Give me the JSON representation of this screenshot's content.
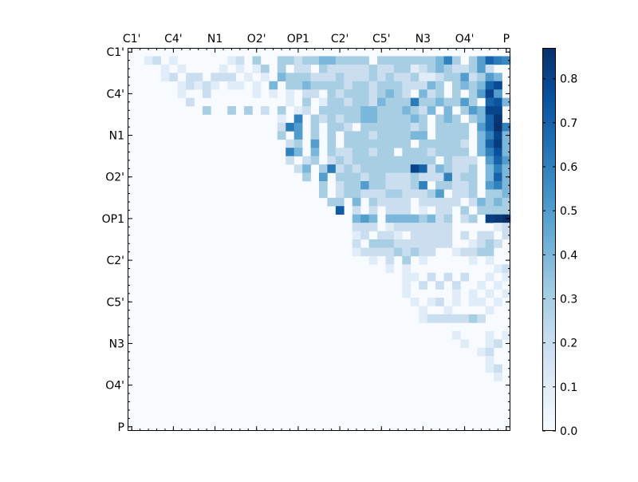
{
  "chart_data": {
    "type": "heatmap",
    "title": "",
    "xlabel": "",
    "ylabel": "",
    "colormap": "Blues",
    "colormap_stops": [
      "#f7fbff",
      "#deebf7",
      "#c6dbef",
      "#9ecae1",
      "#6baed6",
      "#4292c6",
      "#2171b5",
      "#08519c",
      "#08306b"
    ],
    "vmin": 0.0,
    "vmax": 0.87,
    "matrix_size": 46,
    "tick_labels": [
      "C1'",
      "C4'",
      "N1",
      "O2'",
      "OP1",
      "C2'",
      "C5'",
      "N3",
      "O4'",
      "P"
    ],
    "tick_label_indices": [
      0,
      5,
      10,
      15,
      20,
      25,
      30,
      35,
      40,
      45
    ],
    "x_tick_position": "top",
    "colorbar_ticks": [
      "0.0",
      "0.1",
      "0.2",
      "0.3",
      "0.4",
      "0.5",
      "0.6",
      "0.7",
      "0.8"
    ],
    "colorbar_tick_values": [
      0.0,
      0.1,
      0.2,
      0.3,
      0.4,
      0.5,
      0.6,
      0.7,
      0.8
    ],
    "rows": [
      "................................................",
      "..12.1......12.3..33233443333.3333333463.3577",
      "....1.1....1.1.13.3.22.322222322331234322352",
      "....12.22.222.1.1.433322232223232231123352354",
      "......12121.11.1.4.3343333233233322243.343474",
      "......1..2.....1.1.1.22.3233323432.423.3.3585",
      ".......2...........1.3.1332332433333343353.784",
      ".........3..3.3.2.3.12.33333443334324.4.35487",
      "..................1.6.32323344333343.343.3474",
      "..................2.5.3.332.33333323.3333.5786",
      "..................3.5.3.3.3332333344.3333.4674",
      "...................23.5.3.33333333.333332.4774",
      "...................34.4.32233233.33323333.4674",
      "...................2.23.2323333333333.3222.575",
      "....................24.3223233333323243223.464",
      ".....................3.5.33323322232226233.474",
      ".......................3.23353322236.33223.564",
      ".......................3.2332223322235.223.334",
      "........................33.4.32222.22222.24343",
      ".........................6.2.2.222.1.22.3.3333",
      "...........................454.44443423.23.5884",
      "...........................222.12222222.....122",
      "...........................12.221.22222.2.22.22",
      "...........................2.3332222222..1232",
      "...........................1222232322..12233",
      ".............................1.2.3.1.....1.1.",
      "...............................1.1..........12.3",
      ".................................11.2.2.2..1.1223",
      ".................................1.2.2.2..1.1.123",
      ".................................1.....1.1.1.1.1",
      "..................................1.12.1.11.1.1.3",
      "...................................1..1....1..1.1",
      "...................................12222232...2.3",
      "..............................................1.4",
      ".......................................1...1.1..4",
      "........................................1..12..34",
      "..........................................12..1.4",
      "...........................................1..1.3",
      "...........................................12.1.3",
      "............................................1.1.3",
      "..............................................1.1",
      "..............................................2.2",
      "..............................................2.",
      "..............................................3.",
      "..............................................5.5",
      "................................................"
    ]
  }
}
